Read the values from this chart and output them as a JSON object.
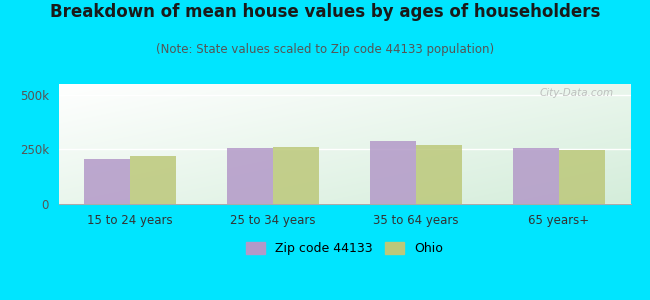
{
  "title": "Breakdown of mean house values by ages of householders",
  "subtitle": "(Note: State values scaled to Zip code 44133 population)",
  "categories": [
    "15 to 24 years",
    "25 to 34 years",
    "35 to 64 years",
    "65 years+"
  ],
  "zip_values": [
    205000,
    258000,
    290000,
    258000
  ],
  "ohio_values": [
    218000,
    260000,
    272000,
    248000
  ],
  "zip_color": "#b399c8",
  "ohio_color": "#bcc87a",
  "ylim": [
    0,
    550000
  ],
  "yticks": [
    0,
    250000,
    500000
  ],
  "ytick_labels": [
    "0",
    "250k",
    "500k"
  ],
  "background_color": "#00e5ff",
  "bar_width": 0.32,
  "legend_zip": "Zip code 44133",
  "legend_ohio": "Ohio",
  "title_fontsize": 12,
  "subtitle_fontsize": 8.5,
  "watermark": "City-Data.com"
}
